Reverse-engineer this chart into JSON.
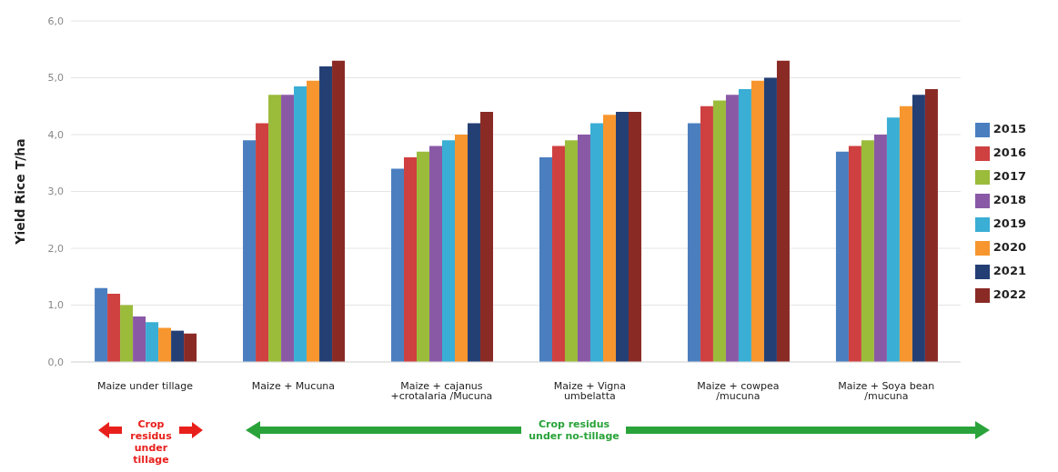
{
  "chart_data": {
    "type": "bar",
    "ylabel": "Yield Rice T/ha",
    "categories": [
      "Maize under tillage",
      "Maize + Mucuna",
      "Maize + cajanus +crotalaria /Mucuna",
      "Maize + Vigna umbelatta",
      "Maize + cowpea /mucuna",
      "Maize + Soya bean /mucuna"
    ],
    "series": [
      {
        "name": "2015",
        "color": "#4a7ebf",
        "values": [
          1.3,
          3.9,
          3.4,
          3.6,
          4.2,
          3.7
        ]
      },
      {
        "name": "2016",
        "color": "#cf4040",
        "values": [
          1.2,
          4.2,
          3.6,
          3.8,
          4.5,
          3.8
        ]
      },
      {
        "name": "2017",
        "color": "#9bbb3b",
        "values": [
          1.0,
          4.7,
          3.7,
          3.9,
          4.6,
          3.9
        ]
      },
      {
        "name": "2018",
        "color": "#8a59a6",
        "values": [
          0.8,
          4.7,
          3.8,
          4.0,
          4.7,
          4.0
        ]
      },
      {
        "name": "2019",
        "color": "#3aaed4",
        "values": [
          0.7,
          4.85,
          3.9,
          4.2,
          4.8,
          4.3
        ]
      },
      {
        "name": "2020",
        "color": "#f7962e",
        "values": [
          0.6,
          4.95,
          4.0,
          4.35,
          4.95,
          4.5
        ]
      },
      {
        "name": "2021",
        "color": "#243f74",
        "values": [
          0.55,
          5.2,
          4.2,
          4.4,
          5.0,
          4.7
        ]
      },
      {
        "name": "2022",
        "color": "#8a2a25",
        "values": [
          0.5,
          5.3,
          4.4,
          4.4,
          5.3,
          4.8
        ]
      }
    ],
    "ylim": [
      0,
      6
    ],
    "yticks": [
      {
        "value": 0,
        "label": "0,0"
      },
      {
        "value": 1,
        "label": "1,0"
      },
      {
        "value": 2,
        "label": "2,0"
      },
      {
        "value": 3,
        "label": "3,0"
      },
      {
        "value": 4,
        "label": "4,0"
      },
      {
        "value": 5,
        "label": "5,0"
      },
      {
        "value": 6,
        "label": "6,0"
      }
    ],
    "grid": "y",
    "legend": "right",
    "annotations": [
      "Crop residus under tillage",
      "Crop residus under no-tillage"
    ]
  }
}
